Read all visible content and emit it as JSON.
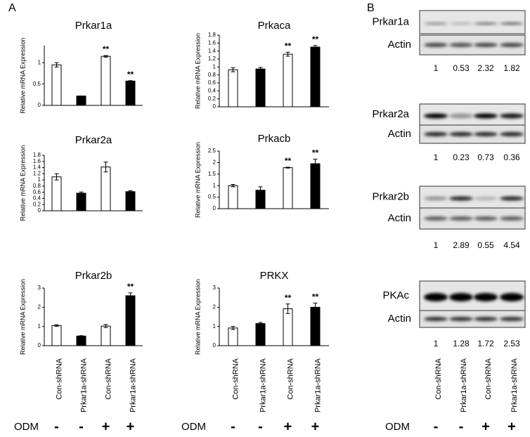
{
  "panel_labels": [
    "A",
    "B"
  ],
  "chart_data": [
    {
      "type": "bar",
      "title": "Prkar1a",
      "y_label": "Relative mRNA Expression",
      "values": [
        0.95,
        0.22,
        1.15,
        0.57
      ],
      "errors": [
        0.05,
        0,
        0.02,
        0.01
      ],
      "colors": [
        "#ffffff",
        "#000000",
        "#ffffff",
        "#000000"
      ],
      "ylim": [
        0,
        1.4
      ],
      "yticks": [
        0,
        0.5,
        1
      ],
      "annotations": [
        {
          "index": 2,
          "label": "**"
        },
        {
          "index": 3,
          "label": "**"
        }
      ]
    },
    {
      "type": "bar",
      "title": "Prkaca",
      "y_label": "Relative mRNA Expression",
      "values": [
        0.93,
        0.95,
        1.32,
        1.5
      ],
      "errors": [
        0.05,
        0.04,
        0.05,
        0.04
      ],
      "colors": [
        "#ffffff",
        "#000000",
        "#ffffff",
        "#000000"
      ],
      "ylim": [
        0,
        1.8
      ],
      "yticks": [
        0,
        0.2,
        0.4,
        0.6,
        0.8,
        1,
        1.2,
        1.4,
        1.6,
        1.8
      ],
      "annotations": [
        {
          "index": 2,
          "label": "**"
        },
        {
          "index": 3,
          "label": "**"
        }
      ]
    },
    {
      "type": "bar",
      "title": "Prkar2a",
      "y_label": "Relative mRNA Expression",
      "values": [
        1.1,
        0.57,
        1.42,
        0.62
      ],
      "errors": [
        0.1,
        0.04,
        0.16,
        0.03
      ],
      "colors": [
        "#ffffff",
        "#000000",
        "#ffffff",
        "#000000"
      ],
      "ylim": [
        0,
        1.8
      ],
      "yticks": [
        0,
        0.2,
        0.4,
        0.6,
        0.8,
        1,
        1.2,
        1.4,
        1.6,
        1.8
      ],
      "annotations": []
    },
    {
      "type": "bar",
      "title": "Prkacb",
      "y_label": "Relative mRNA Expression",
      "values": [
        1.0,
        0.8,
        1.78,
        1.95
      ],
      "errors": [
        0.05,
        0.15,
        0.02,
        0.2
      ],
      "colors": [
        "#ffffff",
        "#000000",
        "#ffffff",
        "#000000"
      ],
      "ylim": [
        0,
        2.5
      ],
      "yticks": [
        0,
        0.5,
        1,
        1.5,
        2,
        2.5
      ],
      "annotations": [
        {
          "index": 2,
          "label": "**"
        },
        {
          "index": 3,
          "label": "**"
        }
      ]
    },
    {
      "type": "bar",
      "title": "Prkar2b",
      "y_label": "Relative mRNA Expression",
      "categories": [
        "Con-shRNA",
        "Prkar1a-shRNA",
        "Con-shRNA",
        "Prkar1a-shRNA"
      ],
      "values": [
        1.05,
        0.5,
        1.02,
        2.6
      ],
      "errors": [
        0.04,
        0.02,
        0.08,
        0.15
      ],
      "colors": [
        "#ffffff",
        "#000000",
        "#ffffff",
        "#000000"
      ],
      "ylim": [
        0,
        3
      ],
      "yticks": [
        0,
        1,
        2,
        3
      ],
      "annotations": [
        {
          "index": 3,
          "label": "**"
        }
      ]
    },
    {
      "type": "bar",
      "title": "PRKX",
      "y_label": "Relative mRNA Expression",
      "categories": [
        "Con-shRNA",
        "Prkar1a-shRNA",
        "Con-shRNA",
        "Prkar1a-shRNA"
      ],
      "values": [
        0.92,
        1.15,
        1.92,
        2.0
      ],
      "errors": [
        0.08,
        0.06,
        0.25,
        0.22
      ],
      "colors": [
        "#ffffff",
        "#000000",
        "#ffffff",
        "#000000"
      ],
      "ylim": [
        0,
        3
      ],
      "yticks": [
        0,
        1,
        2,
        3
      ],
      "annotations": [
        {
          "index": 2,
          "label": "**"
        },
        {
          "index": 3,
          "label": "**"
        }
      ]
    }
  ],
  "odm_rows": [
    {
      "label": "ODM",
      "signs": [
        "-",
        "-",
        "+",
        "+"
      ]
    },
    {
      "label": "ODM",
      "signs": [
        "-",
        "-",
        "+",
        "+"
      ]
    },
    {
      "label": "ODM",
      "signs": [
        "-",
        "-",
        "+",
        "+"
      ]
    }
  ],
  "blots": {
    "panels": [
      {
        "protein": "Prkar1a",
        "control": "Actin",
        "quantification": [
          1,
          0.53,
          2.32,
          1.82
        ]
      },
      {
        "protein": "Prkar2a",
        "control": "Actin",
        "quantification": [
          1,
          0.23,
          0.73,
          0.36
        ]
      },
      {
        "protein": "Prkar2b",
        "control": "Actin",
        "quantification": [
          1,
          2.89,
          0.55,
          4.54
        ]
      },
      {
        "protein": "PKAc",
        "control": "Actin",
        "quantification": [
          1,
          1.28,
          1.72,
          2.53
        ]
      }
    ],
    "lane_labels": [
      "Con-shRNA",
      "Prkar1a-shRNA",
      "Con-shRNA",
      "Prkar1a-shRNA"
    ]
  }
}
